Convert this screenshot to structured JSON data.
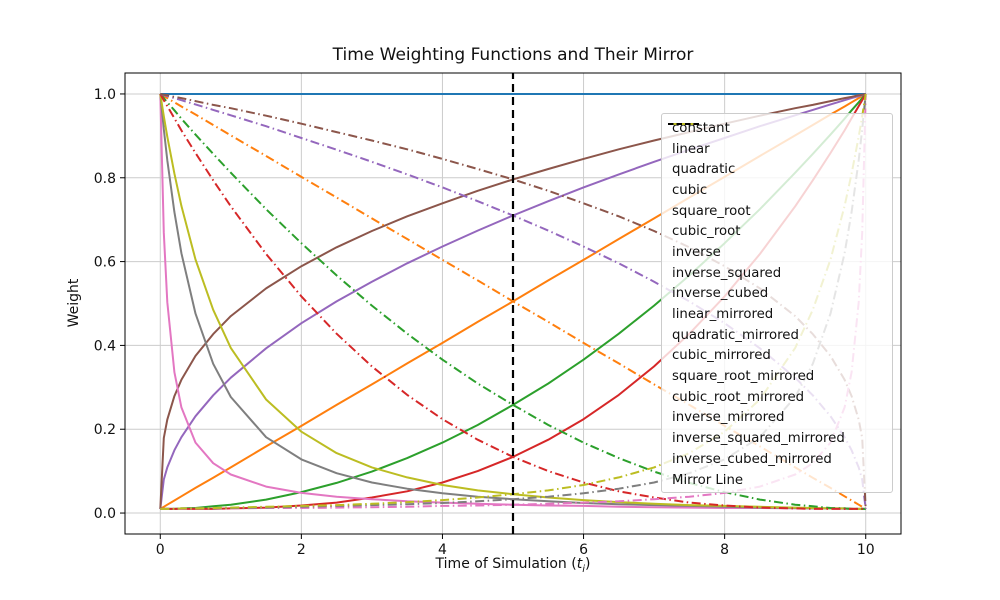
{
  "chart_data": {
    "type": "line",
    "title": "Time Weighting Functions and Their Mirror",
    "xlabel": "Time of Simulation (t_i)",
    "xlabel_parts": {
      "prefix": "Time of Simulation (",
      "var": "t",
      "sub": "i",
      "suffix": ")"
    },
    "ylabel": "Weight",
    "xlim": [
      -0.5,
      10.5
    ],
    "ylim": [
      -0.05,
      1.05
    ],
    "x_tick_labels": [
      "0",
      "2",
      "4",
      "6",
      "8",
      "10"
    ],
    "x_tick_values": [
      0,
      2,
      4,
      6,
      8,
      10
    ],
    "y_tick_labels": [
      "0.0",
      "0.2",
      "0.4",
      "0.6",
      "0.8",
      "1.0"
    ],
    "y_tick_values": [
      0,
      0.2,
      0.4,
      0.6,
      0.8,
      1.0
    ],
    "grid": true,
    "grid_color": "#cccccc",
    "frame_color": "#000000",
    "legend_position": "upper right",
    "x": [
      0,
      0.05,
      0.1,
      0.2,
      0.3,
      0.5,
      0.75,
      1,
      1.5,
      2,
      2.5,
      3,
      3.5,
      4,
      4.5,
      5,
      5.5,
      6,
      6.5,
      7,
      7.5,
      8,
      8.5,
      9,
      9.25,
      9.5,
      9.7,
      9.8,
      9.9,
      9.95,
      10
    ],
    "series": [
      {
        "name": "constant",
        "color": "#1f77b4",
        "linestyle": "solid",
        "y": [
          1,
          1,
          1,
          1,
          1,
          1,
          1,
          1,
          1,
          1,
          1,
          1,
          1,
          1,
          1,
          1,
          1,
          1,
          1,
          1,
          1,
          1,
          1,
          1,
          1,
          1,
          1,
          1,
          1,
          1,
          1
        ]
      },
      {
        "name": "linear",
        "color": "#ff7f0e",
        "linestyle": "solid",
        "y": [
          0.01,
          0.015,
          0.02,
          0.03,
          0.04,
          0.06,
          0.084,
          0.109,
          0.159,
          0.208,
          0.258,
          0.307,
          0.357,
          0.406,
          0.456,
          0.505,
          0.555,
          0.604,
          0.654,
          0.703,
          0.753,
          0.802,
          0.852,
          0.901,
          0.926,
          0.951,
          0.97,
          0.98,
          0.99,
          0.995,
          1.0
        ]
      },
      {
        "name": "quadratic",
        "color": "#2ca02c",
        "linestyle": "solid",
        "y": [
          0.01,
          0.01,
          0.01,
          0.01,
          0.011,
          0.012,
          0.016,
          0.02,
          0.032,
          0.05,
          0.072,
          0.099,
          0.131,
          0.168,
          0.21,
          0.258,
          0.309,
          0.366,
          0.428,
          0.495,
          0.567,
          0.644,
          0.725,
          0.812,
          0.857,
          0.903,
          0.941,
          0.961,
          0.98,
          0.99,
          1.0
        ]
      },
      {
        "name": "cubic",
        "color": "#d62728",
        "linestyle": "solid",
        "y": [
          0.01,
          0.01,
          0.01,
          0.01,
          0.01,
          0.01,
          0.01,
          0.011,
          0.013,
          0.018,
          0.025,
          0.037,
          0.052,
          0.073,
          0.1,
          0.134,
          0.175,
          0.224,
          0.282,
          0.35,
          0.428,
          0.517,
          0.618,
          0.732,
          0.794,
          0.859,
          0.913,
          0.942,
          0.971,
          0.985,
          1.0
        ]
      },
      {
        "name": "square_root",
        "color": "#9467bd",
        "linestyle": "solid",
        "y": [
          0.01,
          0.08,
          0.109,
          0.15,
          0.181,
          0.231,
          0.281,
          0.323,
          0.393,
          0.453,
          0.505,
          0.552,
          0.596,
          0.636,
          0.674,
          0.71,
          0.744,
          0.777,
          0.808,
          0.838,
          0.867,
          0.895,
          0.923,
          0.949,
          0.962,
          0.975,
          0.985,
          0.99,
          0.995,
          0.997,
          1.0
        ]
      },
      {
        "name": "cubic_root",
        "color": "#8c564b",
        "linestyle": "solid",
        "y": [
          0.01,
          0.179,
          0.223,
          0.279,
          0.318,
          0.375,
          0.427,
          0.47,
          0.536,
          0.589,
          0.634,
          0.673,
          0.708,
          0.739,
          0.769,
          0.796,
          0.821,
          0.845,
          0.868,
          0.889,
          0.909,
          0.929,
          0.948,
          0.966,
          0.974,
          0.983,
          0.99,
          0.993,
          0.997,
          0.998,
          1.0
        ]
      },
      {
        "name": "inverse",
        "color": "#e377c2",
        "linestyle": "solid",
        "y": [
          1.0,
          0.669,
          0.503,
          0.336,
          0.252,
          0.168,
          0.119,
          0.092,
          0.063,
          0.048,
          0.039,
          0.033,
          0.028,
          0.025,
          0.022,
          0.02,
          0.018,
          0.017,
          0.015,
          0.014,
          0.013,
          0.012,
          0.012,
          0.011,
          0.011,
          0.011,
          0.01,
          0.01,
          0.01,
          0.01,
          0.01
        ]
      },
      {
        "name": "inverse_squared",
        "color": "#7f7f7f",
        "linestyle": "solid",
        "y": [
          1.0,
          0.916,
          0.842,
          0.718,
          0.62,
          0.476,
          0.356,
          0.277,
          0.181,
          0.128,
          0.095,
          0.073,
          0.058,
          0.047,
          0.039,
          0.033,
          0.028,
          0.024,
          0.021,
          0.019,
          0.017,
          0.015,
          0.013,
          0.012,
          0.011,
          0.011,
          0.011,
          0.01,
          0.01,
          0.01,
          0.01
        ]
      },
      {
        "name": "inverse_cubed",
        "color": "#bcbd22",
        "linestyle": "solid",
        "y": [
          1.0,
          0.947,
          0.898,
          0.81,
          0.733,
          0.605,
          0.485,
          0.394,
          0.271,
          0.194,
          0.143,
          0.109,
          0.085,
          0.067,
          0.054,
          0.045,
          0.037,
          0.031,
          0.026,
          0.022,
          0.019,
          0.017,
          0.015,
          0.013,
          0.012,
          0.011,
          0.011,
          0.01,
          0.01,
          0.01,
          0.01
        ]
      },
      {
        "name": "linear_mirrored",
        "color": "#ff7f0e",
        "linestyle": "dashdot",
        "y": [
          1.0,
          0.995,
          0.99,
          0.98,
          0.97,
          0.951,
          0.926,
          0.901,
          0.852,
          0.802,
          0.753,
          0.703,
          0.654,
          0.604,
          0.555,
          0.505,
          0.456,
          0.406,
          0.357,
          0.307,
          0.258,
          0.208,
          0.159,
          0.109,
          0.084,
          0.06,
          0.04,
          0.03,
          0.02,
          0.015,
          0.01
        ]
      },
      {
        "name": "quadratic_mirrored",
        "color": "#2ca02c",
        "linestyle": "dashdot",
        "y": [
          1.0,
          0.99,
          0.98,
          0.961,
          0.941,
          0.903,
          0.857,
          0.812,
          0.725,
          0.644,
          0.567,
          0.495,
          0.428,
          0.366,
          0.309,
          0.258,
          0.21,
          0.168,
          0.131,
          0.099,
          0.072,
          0.05,
          0.032,
          0.02,
          0.016,
          0.012,
          0.011,
          0.01,
          0.01,
          0.01,
          0.01
        ]
      },
      {
        "name": "cubic_mirrored",
        "color": "#d62728",
        "linestyle": "dashdot",
        "y": [
          1.0,
          0.985,
          0.971,
          0.942,
          0.913,
          0.859,
          0.794,
          0.732,
          0.618,
          0.517,
          0.428,
          0.35,
          0.282,
          0.224,
          0.175,
          0.134,
          0.1,
          0.073,
          0.052,
          0.037,
          0.025,
          0.018,
          0.013,
          0.011,
          0.01,
          0.01,
          0.01,
          0.01,
          0.01,
          0.01,
          0.01
        ]
      },
      {
        "name": "square_root_mirrored",
        "color": "#9467bd",
        "linestyle": "dashdot",
        "y": [
          1.0,
          0.997,
          0.995,
          0.99,
          0.985,
          0.975,
          0.962,
          0.949,
          0.923,
          0.895,
          0.867,
          0.838,
          0.808,
          0.777,
          0.744,
          0.71,
          0.674,
          0.636,
          0.596,
          0.552,
          0.505,
          0.453,
          0.393,
          0.323,
          0.281,
          0.231,
          0.181,
          0.15,
          0.109,
          0.08,
          0.01
        ]
      },
      {
        "name": "cubic_root_mirrored",
        "color": "#8c564b",
        "linestyle": "dashdot",
        "y": [
          1.0,
          0.998,
          0.997,
          0.993,
          0.99,
          0.983,
          0.974,
          0.966,
          0.948,
          0.929,
          0.909,
          0.889,
          0.868,
          0.845,
          0.821,
          0.796,
          0.769,
          0.739,
          0.708,
          0.673,
          0.634,
          0.589,
          0.536,
          0.47,
          0.427,
          0.375,
          0.318,
          0.279,
          0.223,
          0.179,
          0.01
        ]
      },
      {
        "name": "inverse_mirrored",
        "color": "#e377c2",
        "linestyle": "dashdot",
        "y": [
          0.01,
          0.01,
          0.01,
          0.01,
          0.01,
          0.011,
          0.011,
          0.011,
          0.012,
          0.012,
          0.013,
          0.014,
          0.015,
          0.017,
          0.018,
          0.02,
          0.022,
          0.025,
          0.028,
          0.033,
          0.039,
          0.048,
          0.063,
          0.092,
          0.119,
          0.168,
          0.252,
          0.336,
          0.503,
          0.669,
          1.0
        ]
      },
      {
        "name": "inverse_squared_mirrored",
        "color": "#7f7f7f",
        "linestyle": "dashdot",
        "y": [
          0.01,
          0.01,
          0.01,
          0.01,
          0.011,
          0.011,
          0.011,
          0.012,
          0.013,
          0.015,
          0.017,
          0.019,
          0.021,
          0.024,
          0.028,
          0.033,
          0.039,
          0.047,
          0.058,
          0.073,
          0.095,
          0.128,
          0.181,
          0.277,
          0.356,
          0.476,
          0.62,
          0.718,
          0.842,
          0.916,
          1.0
        ]
      },
      {
        "name": "inverse_cubed_mirrored",
        "color": "#bcbd22",
        "linestyle": "dashdot",
        "y": [
          0.01,
          0.01,
          0.01,
          0.01,
          0.011,
          0.011,
          0.012,
          0.013,
          0.015,
          0.017,
          0.019,
          0.022,
          0.026,
          0.031,
          0.037,
          0.045,
          0.054,
          0.067,
          0.085,
          0.109,
          0.143,
          0.194,
          0.271,
          0.394,
          0.485,
          0.605,
          0.733,
          0.81,
          0.898,
          0.947,
          1.0
        ]
      }
    ],
    "mirror_line": {
      "name": "Mirror Line",
      "x": 5,
      "color": "#000000",
      "linestyle": "dashed"
    }
  }
}
